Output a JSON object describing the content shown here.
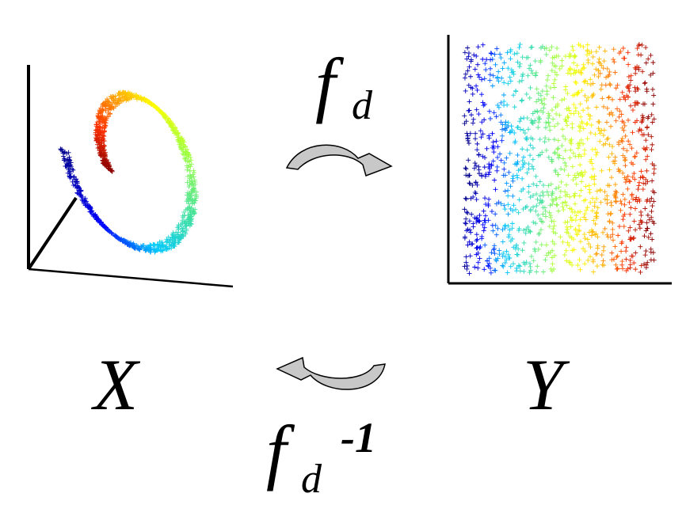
{
  "labels": {
    "forward_map": "f",
    "forward_map_sub": "d",
    "inverse_map": "f",
    "inverse_map_sub": "d",
    "inverse_map_sup": "-1",
    "space_x": "X",
    "space_y": "Y"
  },
  "colors": {
    "axis": "#000000",
    "arrow_fill": "#c8c8c8",
    "arrow_stroke": "#000000",
    "colormap": [
      "#00008b",
      "#0000ff",
      "#00c8ff",
      "#40e0a0",
      "#a0ff40",
      "#ffff00",
      "#ffa500",
      "#ff3000",
      "#8b0000"
    ]
  },
  "icons": {
    "forward_arrow": "curved-arrow-right-icon",
    "inverse_arrow": "curved-arrow-left-icon",
    "marker": "plus-marker"
  }
}
